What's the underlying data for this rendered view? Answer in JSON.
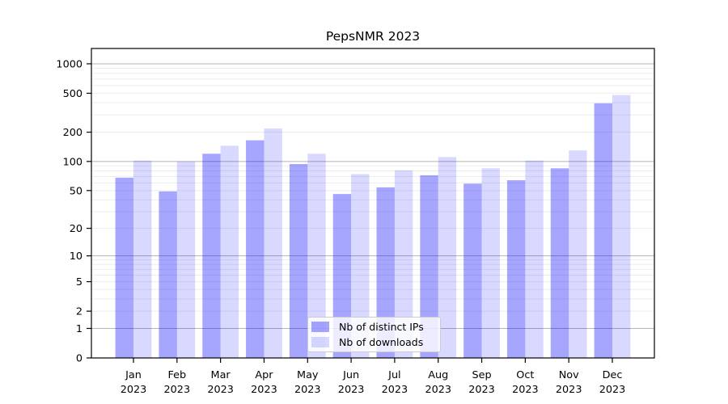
{
  "chart_data": {
    "type": "bar",
    "title": "PepsNMR 2023",
    "categories": [
      {
        "month": "Jan",
        "year": "2023"
      },
      {
        "month": "Feb",
        "year": "2023"
      },
      {
        "month": "Mar",
        "year": "2023"
      },
      {
        "month": "Apr",
        "year": "2023"
      },
      {
        "month": "May",
        "year": "2023"
      },
      {
        "month": "Jun",
        "year": "2023"
      },
      {
        "month": "Jul",
        "year": "2023"
      },
      {
        "month": "Aug",
        "year": "2023"
      },
      {
        "month": "Sep",
        "year": "2023"
      },
      {
        "month": "Oct",
        "year": "2023"
      },
      {
        "month": "Nov",
        "year": "2023"
      },
      {
        "month": "Dec",
        "year": "2023"
      }
    ],
    "series": [
      {
        "name": "Nb of distinct IPs",
        "color": "#0000FF",
        "alpha": 0.35,
        "fill_hex": "#A6A6FF",
        "values": [
          68,
          49,
          120,
          165,
          94,
          46,
          54,
          72,
          59,
          64,
          85,
          395
        ]
      },
      {
        "name": "Nb of downloads",
        "color": "#0000FF",
        "alpha": 0.15,
        "fill_hex": "#D9D9FF",
        "values": [
          102,
          100,
          145,
          218,
          120,
          74,
          81,
          111,
          85,
          102,
          130,
          480
        ]
      }
    ],
    "yscale": "log1p",
    "yticks": [
      0,
      1,
      2,
      5,
      10,
      20,
      50,
      100,
      200,
      500,
      1000
    ],
    "ylim": [
      0,
      1435
    ],
    "grid": {
      "major_values": [
        1,
        10,
        100,
        1000
      ],
      "minor_decades": [
        1,
        10,
        100
      ],
      "major_color": "#b4b4b4",
      "minor_color": "#ededed"
    },
    "legend": {
      "position": "lower-center-inside"
    },
    "axis_color": "#000000",
    "background_color": "#ffffff"
  }
}
